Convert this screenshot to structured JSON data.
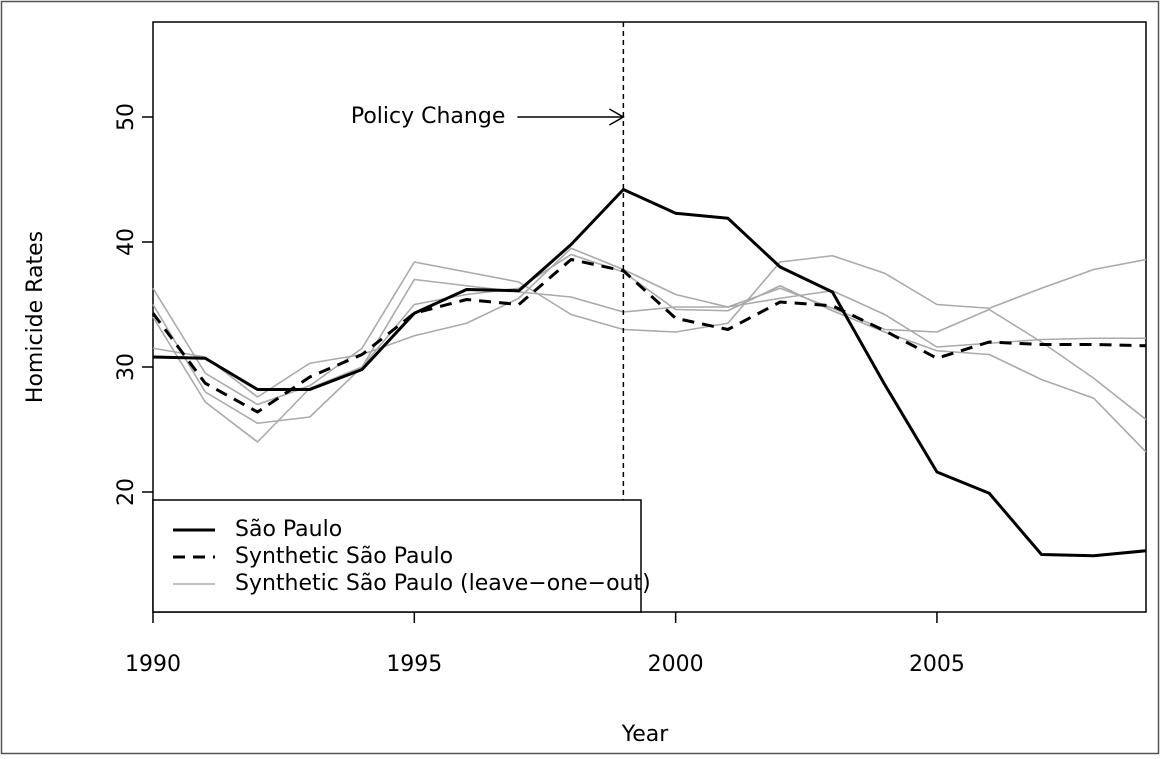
{
  "chart_data": {
    "type": "line",
    "xlabel": "Year",
    "ylabel": "Homicide Rates",
    "annotation": "Policy Change",
    "vline": 1999,
    "x": [
      1990,
      1991,
      1992,
      1993,
      1994,
      1995,
      1996,
      1997,
      1998,
      1999,
      2000,
      2001,
      2002,
      2003,
      2004,
      2005,
      2006,
      2007,
      2008,
      2009
    ],
    "xlim": [
      1990,
      2009
    ],
    "xticks": [
      1990,
      1995,
      2000,
      2005
    ],
    "ylim": [
      10.4,
      57.6
    ],
    "yticks": [
      20,
      30,
      40,
      50
    ],
    "legend": "bottom-left",
    "series": [
      {
        "name": "São Paulo",
        "color": "#000000",
        "dash": "solid",
        "width": 3,
        "values": [
          [
            30.8,
            30.7,
            28.2,
            28.2,
            29.8,
            34.3,
            36.2,
            36.1,
            39.8,
            44.2,
            42.3,
            41.9,
            38.0,
            36.0,
            28.6,
            21.6,
            19.9,
            15.0,
            14.9,
            15.3
          ]
        ]
      },
      {
        "name": "Synthetic São Paulo",
        "color": "#000000",
        "dash": "dashed",
        "width": 3,
        "values": [
          [
            34.3,
            28.7,
            26.4,
            29.2,
            31.0,
            34.3,
            35.4,
            35.0,
            38.6,
            37.7,
            33.9,
            33.0,
            35.2,
            34.9,
            32.9,
            30.7,
            32.0,
            31.8,
            31.8,
            31.7
          ]
        ]
      },
      {
        "name": "Synthetic São Paulo (leave−one−out)",
        "color": "#aaaaaa",
        "dash": "solid",
        "width": 1.6,
        "values": [
          [
            36.3,
            29.5,
            27.0,
            28.5,
            31.5,
            38.4,
            37.6,
            36.8,
            34.2,
            33.0,
            32.8,
            33.5,
            38.4,
            38.9,
            37.5,
            35.0,
            34.7,
            36.3,
            37.8,
            38.6
          ],
          [
            31.5,
            30.8,
            27.6,
            30.3,
            31.0,
            32.5,
            33.5,
            35.5,
            39.5,
            37.8,
            35.8,
            34.8,
            35.5,
            36.1,
            34.2,
            31.6,
            31.9,
            32.2,
            32.3,
            32.3
          ],
          [
            34.0,
            27.2,
            24.0,
            28.3,
            30.0,
            37.0,
            36.5,
            36.0,
            35.6,
            34.4,
            34.8,
            34.8,
            36.3,
            34.7,
            33.0,
            32.8,
            34.6,
            32.0,
            29.1,
            25.8
          ],
          [
            35.0,
            28.0,
            25.5,
            26.0,
            30.0,
            35.0,
            35.8,
            36.3,
            39.0,
            37.6,
            34.6,
            34.5,
            36.5,
            34.5,
            32.8,
            31.3,
            31.0,
            29.0,
            27.5,
            23.2
          ]
        ]
      }
    ]
  }
}
